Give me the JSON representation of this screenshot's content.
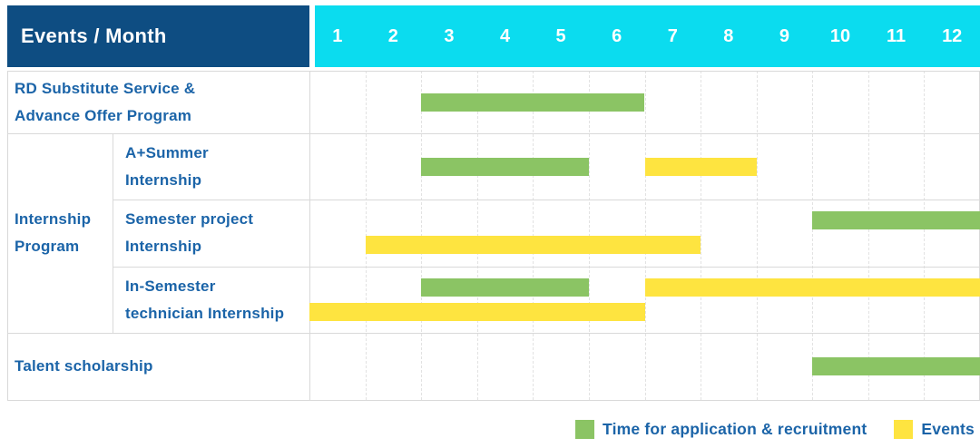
{
  "title": "Events / Month",
  "colors": {
    "header_bg": "#0E4D82",
    "month_bar_bg": "#0BDCEF",
    "label_text": "#1B64A8",
    "application_green": "#8BC464",
    "event_yellow": "#FEE440",
    "grid_solid": "#D9D9D9",
    "grid_dashed": "#E2E2E2"
  },
  "legend": [
    {
      "type": "application",
      "label": "Time for application & recruitment"
    },
    {
      "type": "event",
      "label": "Events"
    }
  ],
  "chart_data": {
    "type": "bar",
    "variant": "gantt",
    "title": "Events / Month",
    "x_categories": [
      "1",
      "2",
      "3",
      "4",
      "5",
      "6",
      "7",
      "8",
      "9",
      "10",
      "11",
      "12"
    ],
    "x_range": [
      1,
      12
    ],
    "grid": "dashed-monthly",
    "legend_position": "bottom-right",
    "row_groups": [
      {
        "label": "Internship\nProgram",
        "from_row": 1,
        "to_row": 3
      }
    ],
    "rows": [
      {
        "label": "RD Substitute Service &\nAdvance Offer Program",
        "group": null,
        "bars": [
          {
            "kind": "application",
            "start_month": 3,
            "end_month": 6,
            "lane": "center"
          }
        ]
      },
      {
        "label": "A+Summer\nInternship",
        "group": "Internship Program",
        "bars": [
          {
            "kind": "application",
            "start_month": 3,
            "end_month": 5,
            "lane": "center"
          },
          {
            "kind": "event",
            "start_month": 7,
            "end_month": 8,
            "lane": "center"
          }
        ]
      },
      {
        "label": "Semester project\nInternship",
        "group": "Internship Program",
        "bars": [
          {
            "kind": "application",
            "start_month": 10,
            "end_month": 12,
            "lane": "top"
          },
          {
            "kind": "event",
            "start_month": 2,
            "end_month": 7,
            "lane": "bottom"
          }
        ]
      },
      {
        "label": "In-Semester\ntechnician Internship",
        "group": "Internship Program",
        "bars": [
          {
            "kind": "application",
            "start_month": 3,
            "end_month": 5,
            "lane": "top"
          },
          {
            "kind": "event",
            "start_month": 7,
            "end_month": 12,
            "lane": "top"
          },
          {
            "kind": "event",
            "start_month": 1,
            "end_month": 6,
            "lane": "bottom"
          }
        ]
      },
      {
        "label": "Talent scholarship",
        "group": null,
        "bars": [
          {
            "kind": "application",
            "start_month": 10,
            "end_month": 12,
            "lane": "center"
          }
        ]
      }
    ],
    "legend": [
      {
        "label": "Time for application & recruitment",
        "color": "#8BC464",
        "meaning": "application & recruitment period"
      },
      {
        "label": "Events",
        "color": "#FEE440",
        "meaning": "event period"
      }
    ]
  }
}
